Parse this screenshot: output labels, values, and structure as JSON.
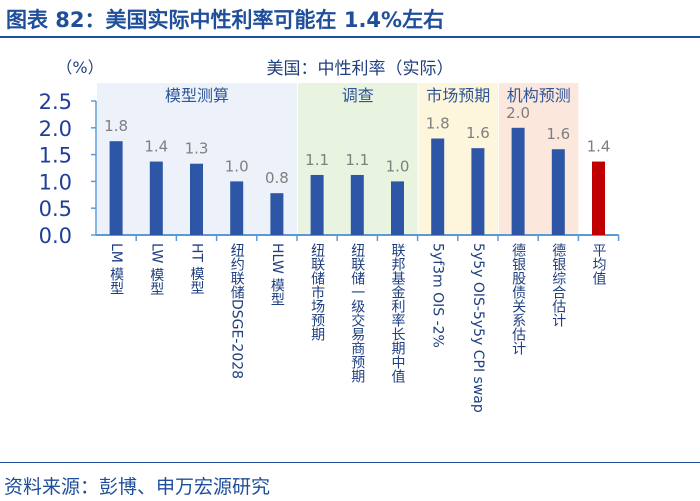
{
  "title": "图表 82：美国实际中性利率可能在 1.4%左右",
  "source": "资料来源：彭博、申万宏源研究",
  "colors": {
    "bar": "#2e56a6",
    "highlight": "#c00000",
    "axis": "#5b9bd5",
    "tick_text": "#1f3f99",
    "value_text": "#7f7f7f"
  },
  "chart_data": {
    "type": "bar",
    "title": "美国：中性利率（实际）",
    "ylabel": "（%）",
    "ylim": [
      0,
      2.5
    ],
    "yticks": [
      "0.0",
      "0.5",
      "1.0",
      "1.5",
      "2.0",
      "2.5"
    ],
    "grid": false,
    "categories": [
      "LM 模型",
      "LW 模型",
      "HT 模型",
      "纽约联储DSGE-2028",
      "HLW 模型",
      "纽联储市场预期",
      "纽联储一级交易商预期",
      "联邦基金利率长期中值",
      "5yf3m OIS -2%",
      "5y5y OIS-5y5y CPI swap",
      "德银股债关系估计",
      "德银综合估计",
      "平均值"
    ],
    "values": [
      1.75,
      1.37,
      1.33,
      1.0,
      0.78,
      1.12,
      1.12,
      1.0,
      1.8,
      1.62,
      2.0,
      1.6,
      1.37
    ],
    "data_labels": [
      "1.8",
      "1.4",
      "1.3",
      "1.0",
      "0.8",
      "1.1",
      "1.1",
      "1.0",
      "1.8",
      "1.6",
      "2.0",
      "1.6",
      "1.4"
    ],
    "highlight_index": 12,
    "groups": [
      {
        "label": "模型测算",
        "start": 0,
        "end": 4,
        "color": "#edf2fa"
      },
      {
        "label": "调查",
        "start": 5,
        "end": 7,
        "color": "#e8f3e0"
      },
      {
        "label": "市场预期",
        "start": 8,
        "end": 9,
        "color": "#fdf6dd"
      },
      {
        "label": "机构预测",
        "start": 10,
        "end": 11,
        "color": "#fbe7dc"
      }
    ]
  }
}
